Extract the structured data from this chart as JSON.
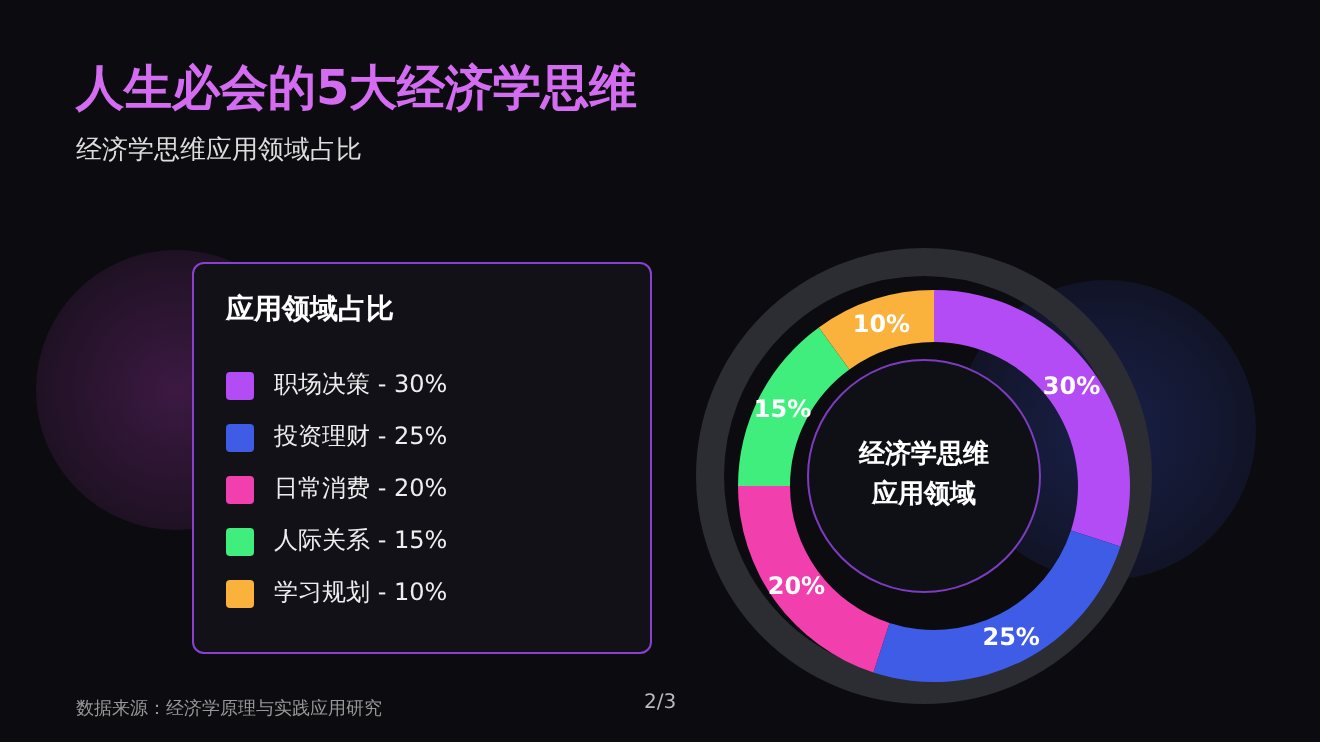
{
  "chart_data": {
    "type": "donut",
    "title": "人生必会的5大经济学思维",
    "subtitle": "经济学思维应用领域占比",
    "legend_title": "应用领域占比",
    "legend": "left",
    "categories": [
      "职场决策",
      "投资理财",
      "日常消费",
      "人际关系",
      "学习规划"
    ],
    "values": [
      30,
      25,
      20,
      15,
      10
    ],
    "colors": [
      "#b34cf5",
      "#3f5ce6",
      "#f23fae",
      "#3fee7c",
      "#fbb23c"
    ],
    "value_labels": [
      "30%",
      "25%",
      "20%",
      "15%",
      "10%"
    ],
    "annotations": [
      "经济学思维",
      "应用领域",
      "数据来源：经济学原理与实践应用研究",
      "2/3"
    ]
  }
}
